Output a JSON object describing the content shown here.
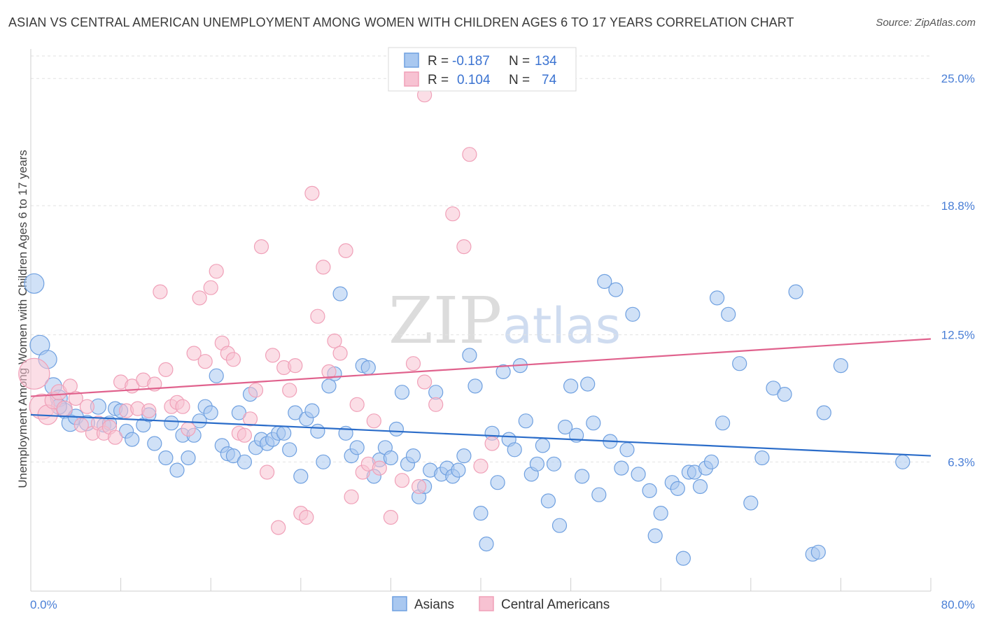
{
  "chart_data": {
    "type": "scatter",
    "title": "ASIAN VS CENTRAL AMERICAN UNEMPLOYMENT AMONG WOMEN WITH CHILDREN AGES 6 TO 17 YEARS CORRELATION CHART",
    "source": "Source: ZipAtlas.com",
    "watermark": {
      "zip": "ZIP",
      "atlas": "atlas"
    },
    "xlabel": "",
    "ylabel": "Unemployment Among Women with Children Ages 6 to 17 years",
    "xlim": [
      0,
      80
    ],
    "ylim": [
      0,
      25.0
    ],
    "x_tick_labels": [
      {
        "value": 0,
        "label": "0.0%"
      },
      {
        "value": 80,
        "label": "80.0%"
      }
    ],
    "y_tick_labels": [
      {
        "value": 6.3,
        "label": "6.3%"
      },
      {
        "value": 12.5,
        "label": "12.5%"
      },
      {
        "value": 18.8,
        "label": "18.8%"
      },
      {
        "value": 25.0,
        "label": "25.0%"
      }
    ],
    "grid": true,
    "legend_position": "top-center",
    "stats": [
      {
        "r_label": "R =",
        "r_value": "-0.187",
        "n_label": "N =",
        "n_value": "134"
      },
      {
        "r_label": "R =",
        "r_value": "0.104",
        "n_label": "N =",
        "n_value": "74"
      }
    ],
    "series": [
      {
        "name": "Asians",
        "color": "#6fa0e0",
        "fill": "#a9c8f0",
        "line_color": "#2a6cc9",
        "trend": {
          "x": [
            0,
            80
          ],
          "y": [
            8.6,
            6.6
          ]
        },
        "points": [
          [
            0.3,
            15.0,
            14
          ],
          [
            0.8,
            12.0,
            14
          ],
          [
            1.5,
            11.3,
            13
          ],
          [
            2.0,
            10.0,
            12
          ],
          [
            2.5,
            9.4,
            12
          ],
          [
            3.0,
            8.8,
            11
          ],
          [
            3.5,
            8.2,
            12
          ],
          [
            4.0,
            8.5,
            11
          ],
          [
            5.0,
            8.2,
            11
          ],
          [
            6.0,
            9.0,
            11
          ],
          [
            6.5,
            8.1,
            10
          ],
          [
            7.0,
            8.2,
            10
          ],
          [
            7.5,
            8.9,
            10
          ],
          [
            8.0,
            8.8,
            10
          ],
          [
            8.5,
            7.8,
            10
          ],
          [
            9.0,
            7.4,
            10
          ],
          [
            10.0,
            8.1,
            10
          ],
          [
            10.5,
            8.6,
            10
          ],
          [
            11.0,
            7.2,
            10
          ],
          [
            12.0,
            6.5,
            10
          ],
          [
            12.5,
            8.2,
            10
          ],
          [
            13.0,
            5.9,
            10
          ],
          [
            13.5,
            7.6,
            10
          ],
          [
            14.0,
            6.5,
            10
          ],
          [
            14.5,
            7.6,
            10
          ],
          [
            15.0,
            8.3,
            10
          ],
          [
            15.5,
            9.0,
            10
          ],
          [
            16.0,
            8.7,
            10
          ],
          [
            16.5,
            10.5,
            10
          ],
          [
            17.0,
            7.1,
            10
          ],
          [
            17.5,
            6.7,
            10
          ],
          [
            18.0,
            6.6,
            10
          ],
          [
            18.5,
            8.7,
            10
          ],
          [
            19.0,
            6.3,
            10
          ],
          [
            19.5,
            9.6,
            10
          ],
          [
            20.0,
            7.0,
            10
          ],
          [
            20.5,
            7.4,
            10
          ],
          [
            21.0,
            7.2,
            10
          ],
          [
            21.5,
            7.4,
            10
          ],
          [
            22.0,
            7.7,
            10
          ],
          [
            22.5,
            7.7,
            10
          ],
          [
            23.0,
            6.9,
            10
          ],
          [
            23.5,
            8.7,
            10
          ],
          [
            24.0,
            5.6,
            10
          ],
          [
            24.5,
            8.4,
            10
          ],
          [
            25.0,
            8.8,
            10
          ],
          [
            25.5,
            7.8,
            10
          ],
          [
            26.0,
            6.3,
            10
          ],
          [
            26.5,
            10.0,
            10
          ],
          [
            27.0,
            10.6,
            10
          ],
          [
            27.5,
            14.5,
            10
          ],
          [
            28.0,
            7.7,
            10
          ],
          [
            28.5,
            6.6,
            10
          ],
          [
            29.0,
            7.0,
            10
          ],
          [
            29.5,
            11.0,
            10
          ],
          [
            30.0,
            10.9,
            10
          ],
          [
            30.5,
            5.6,
            10
          ],
          [
            31.0,
            6.4,
            10
          ],
          [
            31.5,
            7.0,
            10
          ],
          [
            32.0,
            6.5,
            10
          ],
          [
            32.5,
            7.9,
            10
          ],
          [
            33.0,
            9.7,
            10
          ],
          [
            33.5,
            6.2,
            10
          ],
          [
            34.0,
            6.6,
            10
          ],
          [
            34.5,
            4.6,
            10
          ],
          [
            35.0,
            5.1,
            10
          ],
          [
            35.5,
            5.9,
            10
          ],
          [
            36.0,
            9.7,
            10
          ],
          [
            36.5,
            5.7,
            10
          ],
          [
            37.0,
            6.0,
            10
          ],
          [
            37.5,
            5.6,
            10
          ],
          [
            38.0,
            5.9,
            10
          ],
          [
            38.5,
            6.6,
            10
          ],
          [
            39.0,
            11.5,
            10
          ],
          [
            39.5,
            10.0,
            10
          ],
          [
            40.0,
            3.8,
            10
          ],
          [
            40.5,
            2.3,
            10
          ],
          [
            41.0,
            7.7,
            10
          ],
          [
            41.5,
            5.3,
            10
          ],
          [
            42.0,
            10.7,
            10
          ],
          [
            42.5,
            7.4,
            10
          ],
          [
            43.0,
            6.9,
            10
          ],
          [
            43.5,
            11.0,
            10
          ],
          [
            44.0,
            8.3,
            10
          ],
          [
            44.5,
            5.7,
            10
          ],
          [
            45.0,
            6.2,
            10
          ],
          [
            45.5,
            7.1,
            10
          ],
          [
            46.0,
            4.4,
            10
          ],
          [
            46.5,
            6.2,
            10
          ],
          [
            47.0,
            3.2,
            10
          ],
          [
            47.5,
            8.0,
            10
          ],
          [
            48.0,
            10.0,
            10
          ],
          [
            48.5,
            7.6,
            10
          ],
          [
            49.0,
            5.6,
            10
          ],
          [
            49.5,
            10.1,
            10
          ],
          [
            50.0,
            8.2,
            10
          ],
          [
            50.5,
            4.7,
            10
          ],
          [
            51.0,
            15.1,
            10
          ],
          [
            51.5,
            7.3,
            10
          ],
          [
            52.0,
            14.7,
            10
          ],
          [
            52.5,
            6.0,
            10
          ],
          [
            53.0,
            6.9,
            10
          ],
          [
            53.5,
            13.5,
            10
          ],
          [
            54.0,
            5.7,
            10
          ],
          [
            55.0,
            4.9,
            10
          ],
          [
            55.5,
            2.7,
            10
          ],
          [
            56.0,
            3.8,
            10
          ],
          [
            57.0,
            5.3,
            10
          ],
          [
            57.5,
            5.0,
            10
          ],
          [
            58.0,
            1.6,
            10
          ],
          [
            58.5,
            5.8,
            10
          ],
          [
            59.0,
            5.8,
            10
          ],
          [
            59.5,
            5.1,
            10
          ],
          [
            60.0,
            6.0,
            10
          ],
          [
            60.5,
            6.3,
            10
          ],
          [
            61.0,
            14.3,
            10
          ],
          [
            61.5,
            8.2,
            10
          ],
          [
            62.0,
            13.5,
            10
          ],
          [
            63.0,
            11.1,
            10
          ],
          [
            64.0,
            4.3,
            10
          ],
          [
            65.0,
            6.5,
            10
          ],
          [
            66.0,
            9.9,
            10
          ],
          [
            67.0,
            9.6,
            10
          ],
          [
            68.0,
            14.6,
            10
          ],
          [
            69.5,
            1.8,
            10
          ],
          [
            70.0,
            1.9,
            10
          ],
          [
            70.5,
            8.7,
            10
          ],
          [
            72.0,
            11.0,
            10
          ],
          [
            77.5,
            6.3,
            10
          ],
          [
            2.5,
            9.0,
            11
          ]
        ]
      },
      {
        "name": "Central Americans",
        "color": "#f0a0b8",
        "fill": "#f7c2d2",
        "line_color": "#e0628d",
        "trend": {
          "x": [
            0,
            80
          ],
          "y": [
            9.5,
            12.3
          ]
        },
        "points": [
          [
            0.3,
            10.6,
            22
          ],
          [
            1.0,
            9.0,
            18
          ],
          [
            1.5,
            8.6,
            14
          ],
          [
            2.0,
            9.3,
            12
          ],
          [
            2.5,
            9.7,
            11
          ],
          [
            3.0,
            8.9,
            11
          ],
          [
            3.5,
            10.0,
            10
          ],
          [
            4.0,
            9.4,
            10
          ],
          [
            4.5,
            8.1,
            10
          ],
          [
            5.0,
            9.0,
            10
          ],
          [
            5.5,
            7.7,
            10
          ],
          [
            6.0,
            8.2,
            10
          ],
          [
            6.5,
            7.7,
            10
          ],
          [
            7.0,
            8.0,
            10
          ],
          [
            7.5,
            7.5,
            10
          ],
          [
            8.0,
            10.2,
            10
          ],
          [
            8.5,
            8.8,
            10
          ],
          [
            9.0,
            10.0,
            10
          ],
          [
            9.5,
            8.9,
            10
          ],
          [
            10.0,
            10.3,
            10
          ],
          [
            10.5,
            8.8,
            10
          ],
          [
            11.0,
            10.1,
            10
          ],
          [
            11.5,
            14.6,
            10
          ],
          [
            12.0,
            10.8,
            10
          ],
          [
            12.5,
            9.0,
            10
          ],
          [
            13.0,
            9.2,
            10
          ],
          [
            13.5,
            9.0,
            10
          ],
          [
            14.0,
            7.9,
            10
          ],
          [
            14.5,
            11.6,
            10
          ],
          [
            15.0,
            14.3,
            10
          ],
          [
            15.5,
            11.2,
            10
          ],
          [
            16.0,
            14.8,
            10
          ],
          [
            16.5,
            15.6,
            10
          ],
          [
            17.0,
            12.1,
            10
          ],
          [
            17.5,
            11.6,
            10
          ],
          [
            18.0,
            11.3,
            10
          ],
          [
            18.5,
            7.7,
            10
          ],
          [
            19.0,
            7.6,
            10
          ],
          [
            19.5,
            8.4,
            10
          ],
          [
            20.0,
            9.8,
            10
          ],
          [
            20.5,
            16.8,
            10
          ],
          [
            21.0,
            5.8,
            10
          ],
          [
            21.5,
            11.5,
            10
          ],
          [
            22.0,
            3.1,
            10
          ],
          [
            22.5,
            10.9,
            10
          ],
          [
            23.0,
            9.8,
            10
          ],
          [
            23.5,
            11.0,
            10
          ],
          [
            24.0,
            3.8,
            10
          ],
          [
            24.5,
            3.6,
            10
          ],
          [
            25.0,
            19.4,
            10
          ],
          [
            25.5,
            13.4,
            10
          ],
          [
            26.0,
            15.8,
            10
          ],
          [
            26.5,
            10.7,
            10
          ],
          [
            27.0,
            12.2,
            10
          ],
          [
            27.5,
            11.6,
            10
          ],
          [
            28.0,
            16.6,
            10
          ],
          [
            28.5,
            4.6,
            10
          ],
          [
            29.0,
            9.1,
            10
          ],
          [
            29.5,
            5.8,
            10
          ],
          [
            30.0,
            6.2,
            10
          ],
          [
            30.5,
            8.3,
            10
          ],
          [
            31.0,
            6.0,
            10
          ],
          [
            32.0,
            3.6,
            10
          ],
          [
            33.0,
            5.4,
            10
          ],
          [
            34.0,
            11.1,
            10
          ],
          [
            34.5,
            5.1,
            10
          ],
          [
            35.0,
            10.2,
            10
          ],
          [
            36.0,
            9.1,
            10
          ],
          [
            37.5,
            18.4,
            10
          ],
          [
            38.5,
            16.8,
            10
          ],
          [
            39.0,
            21.3,
            10
          ],
          [
            40.0,
            6.1,
            10
          ],
          [
            41.0,
            7.2,
            10
          ],
          [
            35.0,
            24.2,
            10
          ]
        ]
      }
    ]
  },
  "bottom_legend": [
    {
      "label": "Asians"
    },
    {
      "label": "Central Americans"
    }
  ]
}
